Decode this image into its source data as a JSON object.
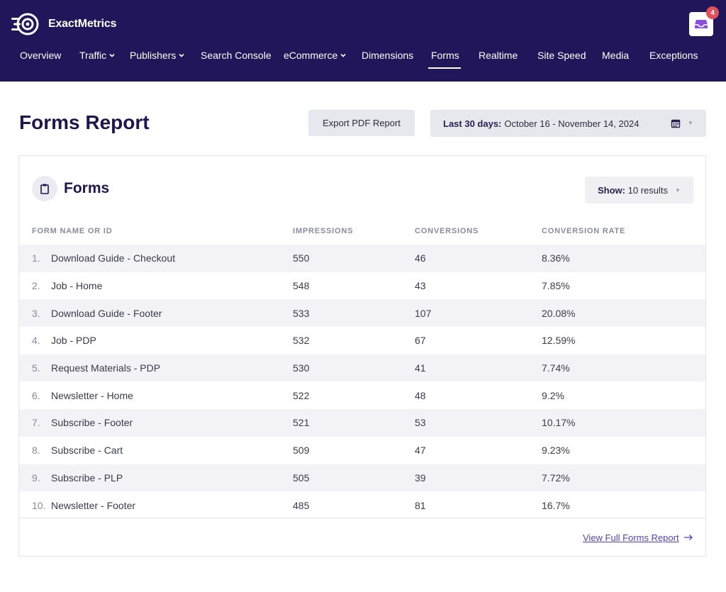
{
  "brand": {
    "name": "ExactMetrics"
  },
  "notifications": {
    "count": "4"
  },
  "nav": [
    {
      "label": "Overview",
      "dropdown": false
    },
    {
      "label": "Traffic",
      "dropdown": true
    },
    {
      "label": "Publishers",
      "dropdown": true
    },
    {
      "label": "Search Console",
      "dropdown": false
    },
    {
      "label": "eCommerce",
      "dropdown": true
    },
    {
      "label": "Dimensions",
      "dropdown": false
    },
    {
      "label": "Forms",
      "dropdown": false,
      "active": true
    },
    {
      "label": "Realtime",
      "dropdown": false
    },
    {
      "label": "Site Speed",
      "dropdown": false
    },
    {
      "label": "Media",
      "dropdown": false
    },
    {
      "label": "Exceptions",
      "dropdown": false
    }
  ],
  "page": {
    "title": "Forms Report",
    "export_label": "Export PDF Report",
    "date_range_label": "Last 30 days:",
    "date_range_value": "October 16 - November 14, 2024"
  },
  "card": {
    "title": "Forms",
    "show_label": "Show:",
    "show_value": "10 results",
    "columns": [
      "FORM NAME OR ID",
      "IMPRESSIONS",
      "CONVERSIONS",
      "CONVERSION RATE"
    ],
    "rows": [
      {
        "num": "1.",
        "name": "Download Guide - Checkout",
        "impressions": "550",
        "conversions": "46",
        "rate": "8.36%"
      },
      {
        "num": "2.",
        "name": "Job - Home",
        "impressions": "548",
        "conversions": "43",
        "rate": "7.85%"
      },
      {
        "num": "3.",
        "name": "Download Guide - Footer",
        "impressions": "533",
        "conversions": "107",
        "rate": "20.08%"
      },
      {
        "num": "4.",
        "name": "Job - PDP",
        "impressions": "532",
        "conversions": "67",
        "rate": "12.59%"
      },
      {
        "num": "5.",
        "name": "Request Materials - PDP",
        "impressions": "530",
        "conversions": "41",
        "rate": "7.74%"
      },
      {
        "num": "6.",
        "name": "Newsletter - Home",
        "impressions": "522",
        "conversions": "48",
        "rate": "9.2%"
      },
      {
        "num": "7.",
        "name": "Subscribe - Footer",
        "impressions": "521",
        "conversions": "53",
        "rate": "10.17%"
      },
      {
        "num": "8.",
        "name": "Subscribe - Cart",
        "impressions": "509",
        "conversions": "47",
        "rate": "9.23%"
      },
      {
        "num": "9.",
        "name": "Subscribe - PLP",
        "impressions": "505",
        "conversions": "39",
        "rate": "7.72%"
      },
      {
        "num": "10.",
        "name": "Newsletter - Footer",
        "impressions": "485",
        "conversions": "81",
        "rate": "16.7%"
      }
    ],
    "full_report_link": "View Full Forms Report"
  },
  "colors": {
    "header_bg": "#21165a",
    "title": "#20164c",
    "link": "#5b3fb4",
    "badge": "#e0505b"
  }
}
